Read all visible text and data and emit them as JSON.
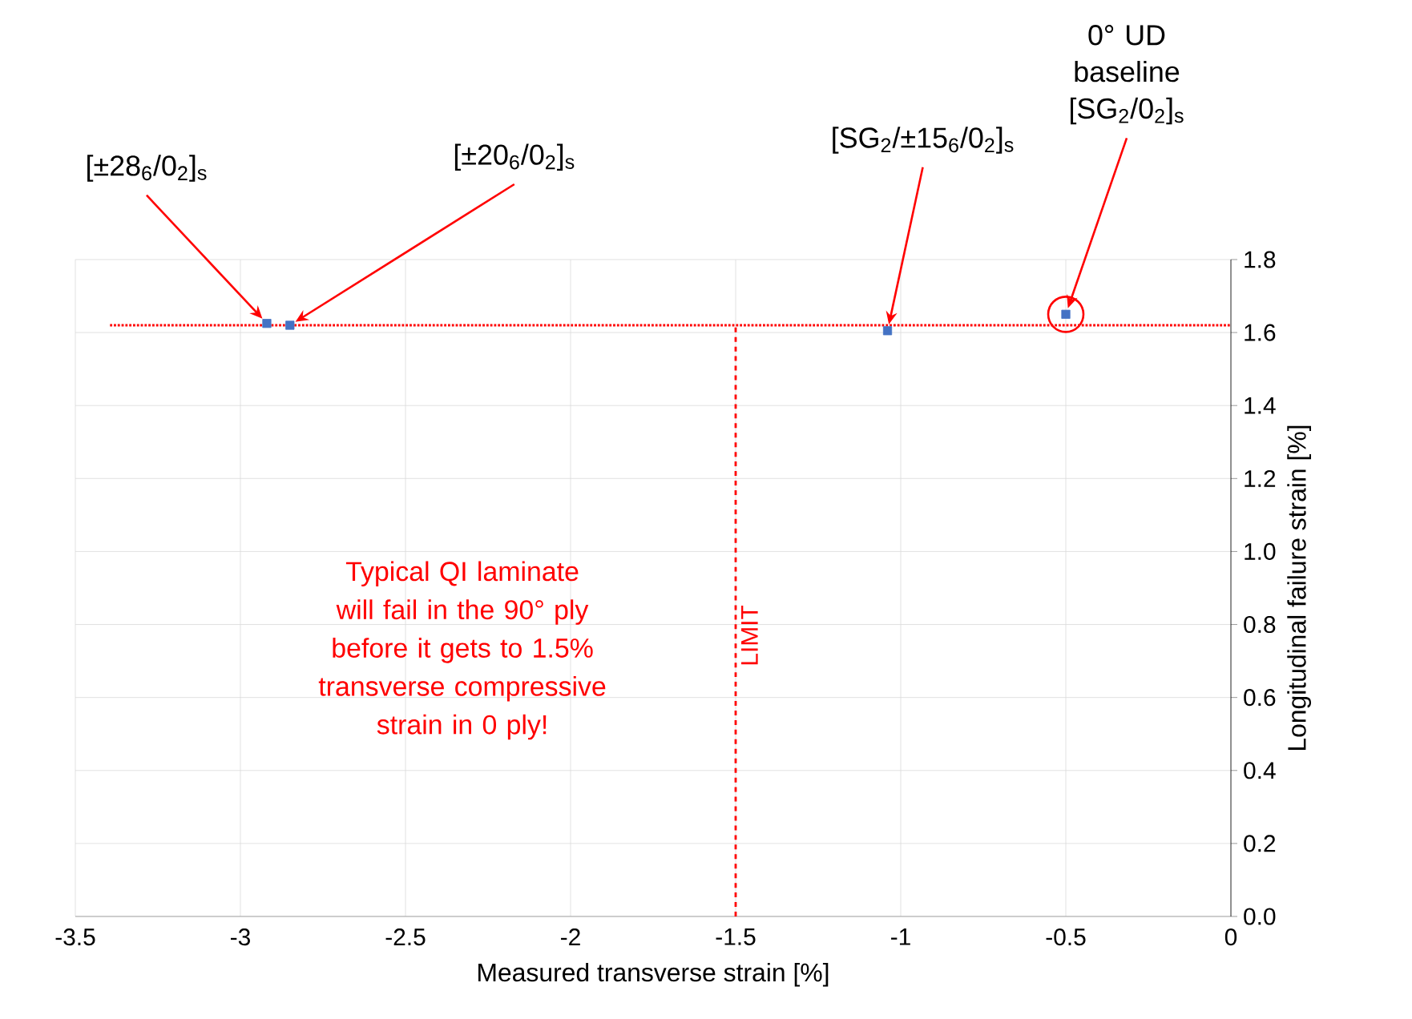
{
  "chart_data": {
    "type": "scatter",
    "xlabel": "Measured transverse strain [%]",
    "ylabel": "Longitudinal failure strain [%]",
    "x": [
      -2.92,
      -2.85,
      -1.04,
      -0.5
    ],
    "series": [
      {
        "color": "#4472c4",
        "values": [
          1.625,
          1.62,
          1.605,
          1.65
        ]
      }
    ],
    "marker": "square",
    "xlim": [
      -3.5,
      0
    ],
    "xticks": [
      -3.5,
      -3,
      -2.5,
      -2,
      -1.5,
      -1,
      -0.5,
      0
    ],
    "ylim": [
      0,
      1.8
    ],
    "yticks": [
      {
        "value": 0,
        "label": "0.0"
      },
      {
        "value": 0.2,
        "label": "0.2"
      },
      {
        "value": 0.4,
        "label": "0.4"
      },
      {
        "value": 0.6,
        "label": "0.6"
      },
      {
        "value": 0.8,
        "label": "0.8"
      },
      {
        "value": 1.0,
        "label": "1.0"
      },
      {
        "value": 1.2,
        "label": "1.2"
      },
      {
        "value": 1.4,
        "label": "1.4"
      },
      {
        "value": 1.6,
        "label": "1.6"
      },
      {
        "value": 1.8,
        "label": "1.8"
      }
    ],
    "grid": true,
    "ref_lines": [
      {
        "axis": "y",
        "value": 1.62,
        "color": "#ff0000",
        "line_style": "dotted"
      },
      {
        "axis": "x",
        "value": -1.5,
        "label": "LIMIT",
        "color": "#ff0000",
        "line_style": "dashed"
      }
    ],
    "annotations": [
      {
        "text": "[±28$_{6}$/0$_{2}$]$_{s}$",
        "x": -2.92,
        "y": 1.625
      },
      {
        "text": "[±20$_{6}$/0$_{2}$]$_{s}$",
        "x": -2.85,
        "y": 1.62
      },
      {
        "text": "[SG$_{2}$/±15$_{6}$/0$_{2}$]$_{s}$",
        "x": -1.04,
        "y": 1.605
      },
      {
        "text": "0° UD baseline [SG$_{2}$/0$_{2}$]$_{s}$",
        "x": -0.5,
        "y": 1.65
      },
      "Typical QI laminate will fail in the 90° ply before it gets to 1.5% transverse compressive strain in 0 ply!"
    ]
  }
}
